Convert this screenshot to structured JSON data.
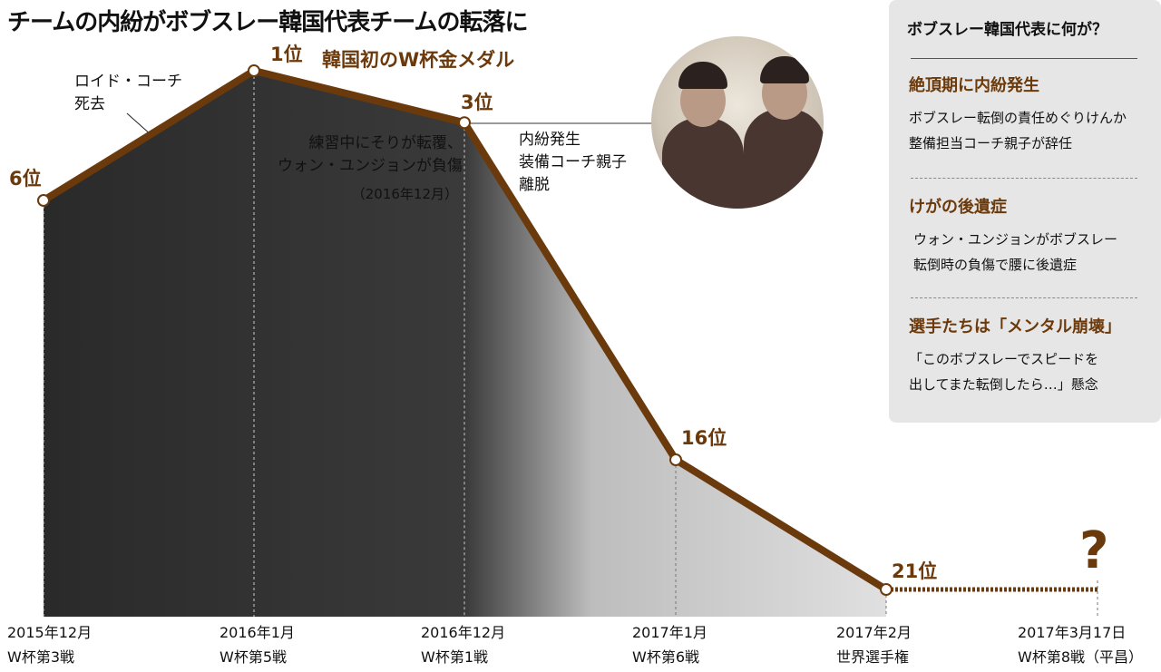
{
  "title": "チームの内紛がボブスレー韓国代表チームの転落に",
  "chart_data": {
    "type": "line",
    "title": "チームの内紛がボブスレー韓国代表チームの転落に",
    "categories": [
      {
        "date": "2015年12月",
        "event": "W杯第3戦"
      },
      {
        "date": "2016年1月",
        "event": "W杯第5戦"
      },
      {
        "date": "2016年12月",
        "event": "W杯第1戦"
      },
      {
        "date": "2017年1月",
        "event": "W杯第6戦"
      },
      {
        "date": "2017年2月",
        "event": "世界選手権"
      },
      {
        "date": "2017年3月17日",
        "event": "W杯第8戦（平昌）"
      }
    ],
    "values": [
      6,
      1,
      3,
      16,
      21,
      null
    ],
    "rank_labels": [
      "6位",
      "1位",
      "3位",
      "16位",
      "21位",
      "?"
    ],
    "y_axis": "rank (inverted)",
    "ylim": [
      1,
      21
    ],
    "grid": false,
    "line_color": "#6b3a0c",
    "annotations": {
      "coach_death": "ロイド・コーチ\n死去",
      "gold": "韓国初のW杯金メダル",
      "injury": "練習中にそりが転覆、\nウォン・ユンジョンが負傷",
      "injury_date": "（2016年12月）",
      "conflict": "内紛発生\n装備コーチ親子\n離脱"
    }
  },
  "panel": {
    "heading": "ボブスレー韓国代表に何が？",
    "sections": [
      {
        "title": "絶頂期に内紛発生",
        "body": "ボブスレー転倒の責任めぐりけんか\n整備担当コーチ親子が辞任"
      },
      {
        "title": "けがの後遺症",
        "body": "ウォン・ユンジョンがボブスレー\n転倒時の負傷で腰に後遺症"
      },
      {
        "title": "選手たちは「メンタル崩壊」",
        "body": "「このボブスレーでスピードを\n出してまた転倒したら…」懸念"
      }
    ]
  }
}
